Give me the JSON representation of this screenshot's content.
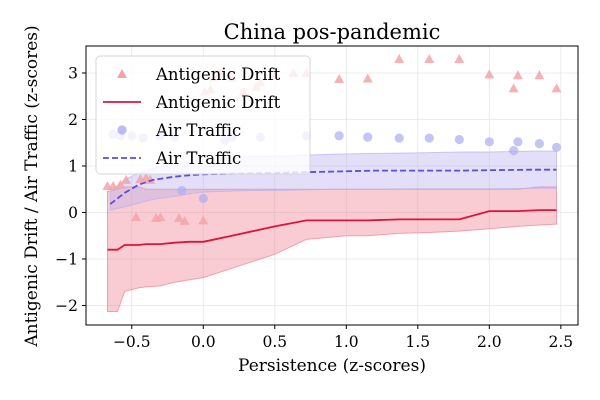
{
  "chart_data": {
    "type": "line",
    "title": "China pos-pandemic",
    "xlabel": "Persistence (z-scores)",
    "ylabel": "Antigenic Drift / Air Traffic (z-scores)",
    "xlim": [
      -0.82,
      2.62
    ],
    "ylim": [
      -2.42,
      3.58
    ],
    "xticks": [
      -0.5,
      0.0,
      0.5,
      1.0,
      1.5,
      2.0,
      2.5
    ],
    "xtick_labels": [
      "−0.5",
      "0.0",
      "0.5",
      "1.0",
      "1.5",
      "2.0",
      "2.5"
    ],
    "yticks": [
      -2,
      -1,
      0,
      1,
      2,
      3
    ],
    "ytick_labels": [
      "−2",
      "−1",
      "0",
      "1",
      "2",
      "3"
    ],
    "grid": true,
    "legend_position": "top-left",
    "series": [
      {
        "name": "Antigenic Drift",
        "kind": "scatter",
        "marker": "triangle",
        "color": "#f4a3a8",
        "x": [
          -0.67,
          -0.63,
          -0.58,
          -0.54,
          -0.47,
          -0.44,
          -0.4,
          -0.37,
          -0.33,
          -0.3,
          -0.17,
          -0.13,
          0.0,
          0.01,
          0.05,
          0.07,
          0.12,
          0.2,
          0.28,
          0.37,
          0.4,
          0.5,
          0.63,
          0.72,
          0.95,
          1.15,
          1.37,
          1.58,
          1.79,
          2.0,
          2.17,
          2.2,
          2.35,
          2.47
        ],
        "y": [
          0.57,
          0.57,
          0.6,
          0.7,
          -0.1,
          0.72,
          0.75,
          0.7,
          -0.12,
          -0.1,
          -0.12,
          -0.18,
          -0.17,
          2.6,
          2.65,
          2.9,
          3.0,
          2.9,
          2.6,
          2.7,
          2.8,
          2.95,
          3.0,
          3.0,
          2.87,
          2.88,
          3.3,
          3.3,
          3.3,
          2.97,
          2.67,
          2.95,
          2.95,
          2.67
        ]
      },
      {
        "name": "Antigenic Drift",
        "kind": "line",
        "color": "#dc143c",
        "band_color": "#f08090",
        "x": [
          -0.67,
          -0.6,
          -0.55,
          -0.45,
          -0.4,
          -0.3,
          -0.2,
          -0.1,
          0.0,
          0.2,
          0.5,
          0.72,
          1.0,
          1.15,
          1.37,
          1.58,
          1.79,
          2.0,
          2.2,
          2.35,
          2.47
        ],
        "y": [
          -0.8,
          -0.8,
          -0.7,
          -0.7,
          -0.68,
          -0.68,
          -0.65,
          -0.63,
          -0.63,
          -0.5,
          -0.3,
          -0.17,
          -0.17,
          -0.17,
          -0.15,
          -0.15,
          -0.15,
          0.03,
          0.03,
          0.05,
          0.05
        ],
        "lower": [
          -2.13,
          -2.13,
          -1.7,
          -1.62,
          -1.6,
          -1.58,
          -1.5,
          -1.45,
          -1.4,
          -1.2,
          -0.9,
          -0.58,
          -0.5,
          -0.5,
          -0.45,
          -0.43,
          -0.4,
          -0.35,
          -0.3,
          -0.27,
          -0.25
        ],
        "upper": [
          0.45,
          0.5,
          0.55,
          0.55,
          0.5,
          0.5,
          0.5,
          0.5,
          0.5,
          0.5,
          0.5,
          0.5,
          0.5,
          0.5,
          0.5,
          0.5,
          0.5,
          0.5,
          0.5,
          0.55,
          0.55
        ]
      },
      {
        "name": "Air Traffic",
        "kind": "scatter",
        "marker": "circle",
        "color": "#b0b0f2",
        "x": [
          -0.63,
          -0.58,
          -0.5,
          -0.42,
          -0.3,
          -0.2,
          -0.15,
          0.0,
          0.15,
          0.2,
          0.4,
          0.72,
          0.95,
          1.15,
          1.37,
          1.58,
          1.79,
          2.0,
          2.17,
          2.2,
          2.35,
          2.47
        ],
        "y": [
          1.68,
          1.65,
          1.65,
          1.6,
          1.65,
          1.62,
          0.47,
          0.3,
          1.55,
          1.62,
          1.62,
          1.65,
          1.65,
          1.62,
          1.6,
          1.6,
          1.57,
          1.52,
          1.33,
          1.52,
          1.48,
          1.4
        ]
      },
      {
        "name": "Air Traffic",
        "kind": "line",
        "dashed": true,
        "color": "#5b4fd6",
        "band_color": "#b8b0ee",
        "x": [
          -0.65,
          -0.55,
          -0.45,
          -0.35,
          -0.2,
          -0.1,
          0.0,
          0.3,
          0.6,
          0.9,
          1.2,
          1.5,
          1.8,
          2.0,
          2.3,
          2.47
        ],
        "y": [
          0.18,
          0.42,
          0.6,
          0.7,
          0.77,
          0.8,
          0.82,
          0.84,
          0.86,
          0.88,
          0.9,
          0.9,
          0.9,
          0.91,
          0.92,
          0.92
        ],
        "lower": [
          0.05,
          0.12,
          0.2,
          0.28,
          0.35,
          0.4,
          0.44,
          0.47,
          0.48,
          0.5,
          0.5,
          0.51,
          0.51,
          0.51,
          0.52,
          0.52
        ],
        "upper": [
          0.45,
          0.7,
          0.85,
          0.95,
          1.05,
          1.1,
          1.15,
          1.2,
          1.22,
          1.25,
          1.27,
          1.28,
          1.3,
          1.3,
          1.32,
          1.32
        ]
      }
    ]
  }
}
